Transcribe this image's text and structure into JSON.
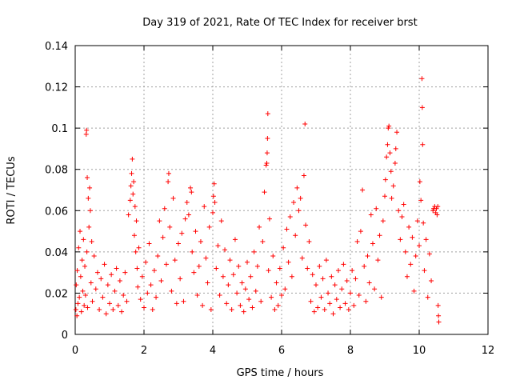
{
  "chart_data": {
    "type": "scatter",
    "title": "Day 319 of 2021, Rate Of TEC Index for receiver brst",
    "xlabel": "GPS time / hours",
    "ylabel": "ROTI / TECUs",
    "xlim": [
      0,
      12
    ],
    "ylim": [
      0,
      0.14
    ],
    "xticks": [
      0,
      2,
      4,
      6,
      8,
      10,
      12
    ],
    "yticks": [
      0,
      0.02,
      0.04,
      0.06,
      0.08,
      0.1,
      0.12,
      0.14
    ],
    "xtick_labels": [
      "0",
      "2",
      "4",
      "6",
      "8",
      "10",
      "12"
    ],
    "ytick_labels": [
      "0",
      "0.02",
      "0.04",
      "0.06",
      "0.08",
      "0.1",
      "0.12",
      "0.14"
    ],
    "grid": true,
    "legend": "none",
    "marker": "+",
    "color": "#ff0000",
    "series": [
      {
        "points": [
          [
            0.02,
            0.012
          ],
          [
            0.03,
            0.024
          ],
          [
            0.05,
            0.009
          ],
          [
            0.06,
            0.031
          ],
          [
            0.08,
            0.015
          ],
          [
            0.1,
            0.042
          ],
          [
            0.12,
            0.018
          ],
          [
            0.14,
            0.05
          ],
          [
            0.16,
            0.028
          ],
          [
            0.18,
            0.011
          ],
          [
            0.2,
            0.036
          ],
          [
            0.22,
            0.021
          ],
          [
            0.24,
            0.046
          ],
          [
            0.26,
            0.014
          ],
          [
            0.28,
            0.033
          ],
          [
            0.3,
            0.019
          ],
          [
            0.32,
            0.097
          ],
          [
            0.33,
            0.099
          ],
          [
            0.34,
            0.04
          ],
          [
            0.35,
            0.076
          ],
          [
            0.36,
            0.013
          ],
          [
            0.38,
            0.066
          ],
          [
            0.4,
            0.052
          ],
          [
            0.42,
            0.071
          ],
          [
            0.44,
            0.06
          ],
          [
            0.46,
            0.025
          ],
          [
            0.48,
            0.045
          ],
          [
            0.5,
            0.016
          ],
          [
            0.55,
            0.038
          ],
          [
            0.6,
            0.022
          ],
          [
            0.65,
            0.03
          ],
          [
            0.7,
            0.012
          ],
          [
            0.75,
            0.027
          ],
          [
            0.8,
            0.018
          ],
          [
            0.85,
            0.034
          ],
          [
            0.9,
            0.01
          ],
          [
            0.95,
            0.024
          ],
          [
            1.0,
            0.015
          ],
          [
            1.05,
            0.029
          ],
          [
            1.1,
            0.012
          ],
          [
            1.15,
            0.021
          ],
          [
            1.2,
            0.032
          ],
          [
            1.25,
            0.014
          ],
          [
            1.3,
            0.026
          ],
          [
            1.35,
            0.011
          ],
          [
            1.4,
            0.019
          ],
          [
            1.45,
            0.03
          ],
          [
            1.5,
            0.016
          ],
          [
            1.55,
            0.058
          ],
          [
            1.6,
            0.065
          ],
          [
            1.62,
            0.072
          ],
          [
            1.64,
            0.078
          ],
          [
            1.66,
            0.085
          ],
          [
            1.68,
            0.068
          ],
          [
            1.7,
            0.074
          ],
          [
            1.72,
            0.048
          ],
          [
            1.74,
            0.062
          ],
          [
            1.76,
            0.04
          ],
          [
            1.78,
            0.055
          ],
          [
            1.8,
            0.032
          ],
          [
            1.82,
            0.023
          ],
          [
            1.85,
            0.042
          ],
          [
            1.9,
            0.017
          ],
          [
            1.95,
            0.028
          ],
          [
            2.0,
            0.013
          ],
          [
            2.05,
            0.035
          ],
          [
            2.1,
            0.02
          ],
          [
            2.15,
            0.044
          ],
          [
            2.2,
            0.024
          ],
          [
            2.25,
            0.012
          ],
          [
            2.3,
            0.031
          ],
          [
            2.35,
            0.018
          ],
          [
            2.4,
            0.038
          ],
          [
            2.45,
            0.055
          ],
          [
            2.5,
            0.026
          ],
          [
            2.55,
            0.047
          ],
          [
            2.6,
            0.061
          ],
          [
            2.65,
            0.034
          ],
          [
            2.7,
            0.074
          ],
          [
            2.72,
            0.078
          ],
          [
            2.75,
            0.052
          ],
          [
            2.8,
            0.021
          ],
          [
            2.85,
            0.066
          ],
          [
            2.9,
            0.036
          ],
          [
            2.95,
            0.015
          ],
          [
            3.0,
            0.044
          ],
          [
            3.05,
            0.027
          ],
          [
            3.1,
            0.049
          ],
          [
            3.15,
            0.016
          ],
          [
            3.2,
            0.056
          ],
          [
            3.25,
            0.064
          ],
          [
            3.3,
            0.058
          ],
          [
            3.35,
            0.071
          ],
          [
            3.38,
            0.069
          ],
          [
            3.4,
            0.04
          ],
          [
            3.45,
            0.03
          ],
          [
            3.5,
            0.05
          ],
          [
            3.55,
            0.019
          ],
          [
            3.6,
            0.033
          ],
          [
            3.65,
            0.045
          ],
          [
            3.7,
            0.014
          ],
          [
            3.75,
            0.062
          ],
          [
            3.8,
            0.037
          ],
          [
            3.85,
            0.025
          ],
          [
            3.9,
            0.052
          ],
          [
            3.95,
            0.012
          ],
          [
            4.0,
            0.059
          ],
          [
            4.02,
            0.067
          ],
          [
            4.04,
            0.073
          ],
          [
            4.06,
            0.064
          ],
          [
            4.1,
            0.032
          ],
          [
            4.15,
            0.043
          ],
          [
            4.2,
            0.019
          ],
          [
            4.25,
            0.055
          ],
          [
            4.3,
            0.028
          ],
          [
            4.35,
            0.041
          ],
          [
            4.4,
            0.015
          ],
          [
            4.45,
            0.024
          ],
          [
            4.5,
            0.036
          ],
          [
            4.55,
            0.012
          ],
          [
            4.6,
            0.029
          ],
          [
            4.65,
            0.046
          ],
          [
            4.7,
            0.02
          ],
          [
            4.75,
            0.033
          ],
          [
            4.8,
            0.014
          ],
          [
            4.85,
            0.025
          ],
          [
            4.9,
            0.011
          ],
          [
            4.95,
            0.022
          ],
          [
            5.0,
            0.035
          ],
          [
            5.05,
            0.017
          ],
          [
            5.1,
            0.028
          ],
          [
            5.15,
            0.013
          ],
          [
            5.2,
            0.04
          ],
          [
            5.25,
            0.021
          ],
          [
            5.3,
            0.033
          ],
          [
            5.35,
            0.052
          ],
          [
            5.4,
            0.016
          ],
          [
            5.45,
            0.045
          ],
          [
            5.5,
            0.069
          ],
          [
            5.55,
            0.082
          ],
          [
            5.57,
            0.083
          ],
          [
            5.58,
            0.088
          ],
          [
            5.59,
            0.095
          ],
          [
            5.6,
            0.107
          ],
          [
            5.62,
            0.031
          ],
          [
            5.65,
            0.056
          ],
          [
            5.7,
            0.018
          ],
          [
            5.75,
            0.038
          ],
          [
            5.8,
            0.012
          ],
          [
            5.85,
            0.025
          ],
          [
            5.9,
            0.014
          ],
          [
            5.95,
            0.032
          ],
          [
            6.0,
            0.019
          ],
          [
            6.05,
            0.042
          ],
          [
            6.1,
            0.022
          ],
          [
            6.15,
            0.051
          ],
          [
            6.2,
            0.035
          ],
          [
            6.25,
            0.057
          ],
          [
            6.3,
            0.028
          ],
          [
            6.35,
            0.064
          ],
          [
            6.4,
            0.048
          ],
          [
            6.45,
            0.071
          ],
          [
            6.5,
            0.06
          ],
          [
            6.55,
            0.066
          ],
          [
            6.6,
            0.037
          ],
          [
            6.65,
            0.077
          ],
          [
            6.68,
            0.102
          ],
          [
            6.7,
            0.053
          ],
          [
            6.75,
            0.032
          ],
          [
            6.8,
            0.045
          ],
          [
            6.85,
            0.016
          ],
          [
            6.9,
            0.029
          ],
          [
            6.95,
            0.011
          ],
          [
            7.0,
            0.024
          ],
          [
            7.05,
            0.013
          ],
          [
            7.1,
            0.033
          ],
          [
            7.15,
            0.018
          ],
          [
            7.2,
            0.027
          ],
          [
            7.25,
            0.012
          ],
          [
            7.3,
            0.036
          ],
          [
            7.35,
            0.02
          ],
          [
            7.4,
            0.015
          ],
          [
            7.45,
            0.028
          ],
          [
            7.5,
            0.01
          ],
          [
            7.55,
            0.024
          ],
          [
            7.6,
            0.017
          ],
          [
            7.65,
            0.031
          ],
          [
            7.7,
            0.013
          ],
          [
            7.75,
            0.022
          ],
          [
            7.8,
            0.034
          ],
          [
            7.85,
            0.015
          ],
          [
            7.9,
            0.026
          ],
          [
            7.95,
            0.012
          ],
          [
            8.0,
            0.02
          ],
          [
            8.05,
            0.031
          ],
          [
            8.1,
            0.014
          ],
          [
            8.15,
            0.027
          ],
          [
            8.2,
            0.045
          ],
          [
            8.25,
            0.019
          ],
          [
            8.3,
            0.05
          ],
          [
            8.35,
            0.07
          ],
          [
            8.4,
            0.033
          ],
          [
            8.45,
            0.016
          ],
          [
            8.5,
            0.038
          ],
          [
            8.55,
            0.025
          ],
          [
            8.6,
            0.058
          ],
          [
            8.65,
            0.044
          ],
          [
            8.7,
            0.022
          ],
          [
            8.75,
            0.061
          ],
          [
            8.8,
            0.036
          ],
          [
            8.85,
            0.048
          ],
          [
            8.9,
            0.018
          ],
          [
            8.95,
            0.055
          ],
          [
            9.0,
            0.067
          ],
          [
            9.02,
            0.075
          ],
          [
            9.05,
            0.086
          ],
          [
            9.08,
            0.092
          ],
          [
            9.1,
            0.1
          ],
          [
            9.12,
            0.101
          ],
          [
            9.15,
            0.088
          ],
          [
            9.18,
            0.079
          ],
          [
            9.2,
            0.066
          ],
          [
            9.25,
            0.072
          ],
          [
            9.3,
            0.083
          ],
          [
            9.32,
            0.09
          ],
          [
            9.35,
            0.098
          ],
          [
            9.4,
            0.06
          ],
          [
            9.45,
            0.046
          ],
          [
            9.5,
            0.057
          ],
          [
            9.55,
            0.063
          ],
          [
            9.6,
            0.04
          ],
          [
            9.65,
            0.028
          ],
          [
            9.7,
            0.052
          ],
          [
            9.75,
            0.034
          ],
          [
            9.8,
            0.047
          ],
          [
            9.85,
            0.021
          ],
          [
            9.9,
            0.038
          ],
          [
            9.95,
            0.055
          ],
          [
            10.0,
            0.043
          ],
          [
            10.02,
            0.074
          ],
          [
            10.05,
            0.065
          ],
          [
            10.08,
            0.124
          ],
          [
            10.09,
            0.11
          ],
          [
            10.1,
            0.092
          ],
          [
            10.12,
            0.054
          ],
          [
            10.15,
            0.031
          ],
          [
            10.2,
            0.046
          ],
          [
            10.25,
            0.018
          ],
          [
            10.3,
            0.039
          ],
          [
            10.35,
            0.026
          ],
          [
            10.4,
            0.06
          ],
          [
            10.42,
            0.061
          ],
          [
            10.45,
            0.062
          ],
          [
            10.48,
            0.059
          ],
          [
            10.5,
            0.061
          ],
          [
            10.52,
            0.058
          ],
          [
            10.54,
            0.062
          ],
          [
            10.55,
            0.014
          ],
          [
            10.56,
            0.009
          ],
          [
            10.57,
            0.006
          ]
        ]
      }
    ]
  }
}
